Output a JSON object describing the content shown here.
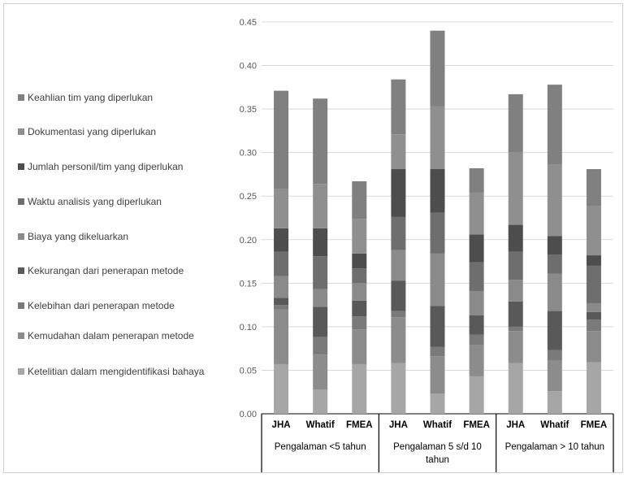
{
  "chart_data": {
    "type": "bar",
    "stacked": true,
    "title": "",
    "xlabel": "",
    "ylabel": "",
    "ylim": [
      0,
      0.45
    ],
    "y_ticks": [
      "0.00",
      "0.05",
      "0.10",
      "0.15",
      "0.20",
      "0.25",
      "0.30",
      "0.35",
      "0.40",
      "0.45"
    ],
    "grid": true,
    "legend_position": "left",
    "categories": [
      "JHA",
      "Whatif",
      "FMEA",
      "JHA",
      "Whatif",
      "FMEA",
      "JHA",
      "Whatif",
      "FMEA"
    ],
    "groups": [
      {
        "label": "Pengalaman <5 tahun",
        "size": 3
      },
      {
        "label": "Pengalaman 5 s/d 10 tahun",
        "size": 3
      },
      {
        "label": "Pengalaman > 10 tahun",
        "size": 3
      }
    ],
    "series": [
      {
        "name": "Ketelitian dalam mengidentifikasi bahaya",
        "color": "#a6a6a6",
        "values": [
          0.057,
          0.028,
          0.057,
          0.058,
          0.023,
          0.043,
          0.058,
          0.026,
          0.059
        ]
      },
      {
        "name": "Kemudahan dalam penerapan metode",
        "color": "#8c8c8c",
        "values": [
          0.063,
          0.04,
          0.04,
          0.053,
          0.043,
          0.036,
          0.037,
          0.035,
          0.036
        ]
      },
      {
        "name": "Kelebihan dari penerapan metode",
        "color": "#7a7a7a",
        "values": [
          0.005,
          0.02,
          0.015,
          0.007,
          0.011,
          0.012,
          0.005,
          0.012,
          0.013
        ]
      },
      {
        "name": "Kekurangan dari penerapan metode",
        "color": "#595959",
        "values": [
          0.008,
          0.035,
          0.018,
          0.035,
          0.047,
          0.022,
          0.029,
          0.045,
          0.009
        ]
      },
      {
        "name": "Biaya yang dikeluarkan",
        "color": "#8a8a8a",
        "values": [
          0.025,
          0.02,
          0.02,
          0.035,
          0.06,
          0.028,
          0.025,
          0.043,
          0.01
        ]
      },
      {
        "name": "Waktu analisis yang diperlukan",
        "color": "#6e6e6e",
        "values": [
          0.028,
          0.038,
          0.017,
          0.038,
          0.047,
          0.033,
          0.032,
          0.022,
          0.043
        ]
      },
      {
        "name": "Jumlah personil/tim  yang diperlukan",
        "color": "#4d4d4d",
        "values": [
          0.027,
          0.032,
          0.017,
          0.055,
          0.05,
          0.032,
          0.031,
          0.021,
          0.012
        ]
      },
      {
        "name": "Dokumentasi yang diperlukan",
        "color": "#8f8f8f",
        "values": [
          0.045,
          0.051,
          0.04,
          0.04,
          0.072,
          0.048,
          0.083,
          0.082,
          0.057
        ]
      },
      {
        "name": "Keahlian tim yang diperlukan",
        "color": "#808080",
        "values": [
          0.113,
          0.098,
          0.043,
          0.063,
          0.087,
          0.028,
          0.067,
          0.092,
          0.042
        ]
      }
    ]
  }
}
